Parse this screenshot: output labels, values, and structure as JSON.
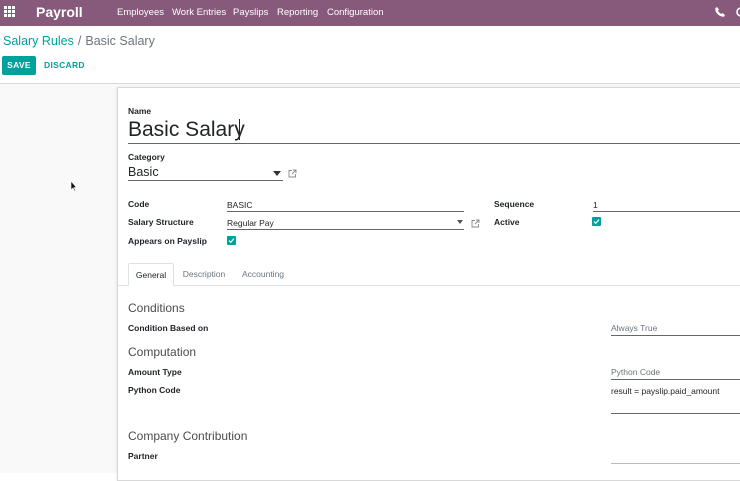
{
  "navbar": {
    "app_name": "Payroll",
    "menu": [
      "Employees",
      "Work Entries",
      "Payslips",
      "Reporting",
      "Configuration"
    ],
    "icons": [
      "apps-grid-icon",
      "phone-icon"
    ],
    "color": "#875a7b"
  },
  "breadcrumb": {
    "parent": "Salary Rules",
    "separator": "/",
    "current": "Basic Salary"
  },
  "actions": {
    "save_label": "SAVE",
    "discard_label": "DISCARD",
    "accent": "#00a09d"
  },
  "form": {
    "name_label": "Name",
    "name_value": "Basic Salary",
    "category_label": "Category",
    "category_value": "Basic",
    "code_label": "Code",
    "code_value": "BASIC",
    "structure_label": "Salary Structure",
    "structure_value": "Regular Pay",
    "appears_label": "Appears on Payslip",
    "appears_checked": true,
    "sequence_label": "Sequence",
    "sequence_value": "1",
    "active_label": "Active",
    "active_checked": true
  },
  "tabs": [
    {
      "label": "General",
      "active": true
    },
    {
      "label": "Description",
      "active": false
    },
    {
      "label": "Accounting",
      "active": false
    }
  ],
  "general": {
    "conditions_title": "Conditions",
    "condition_label": "Condition Based on",
    "condition_value": "Always True",
    "computation_title": "Computation",
    "amount_type_label": "Amount Type",
    "amount_type_value": "Python Code",
    "python_code_label": "Python Code",
    "python_code_value": "result = payslip.paid_amount",
    "contribution_title": "Company Contribution",
    "partner_label": "Partner"
  }
}
